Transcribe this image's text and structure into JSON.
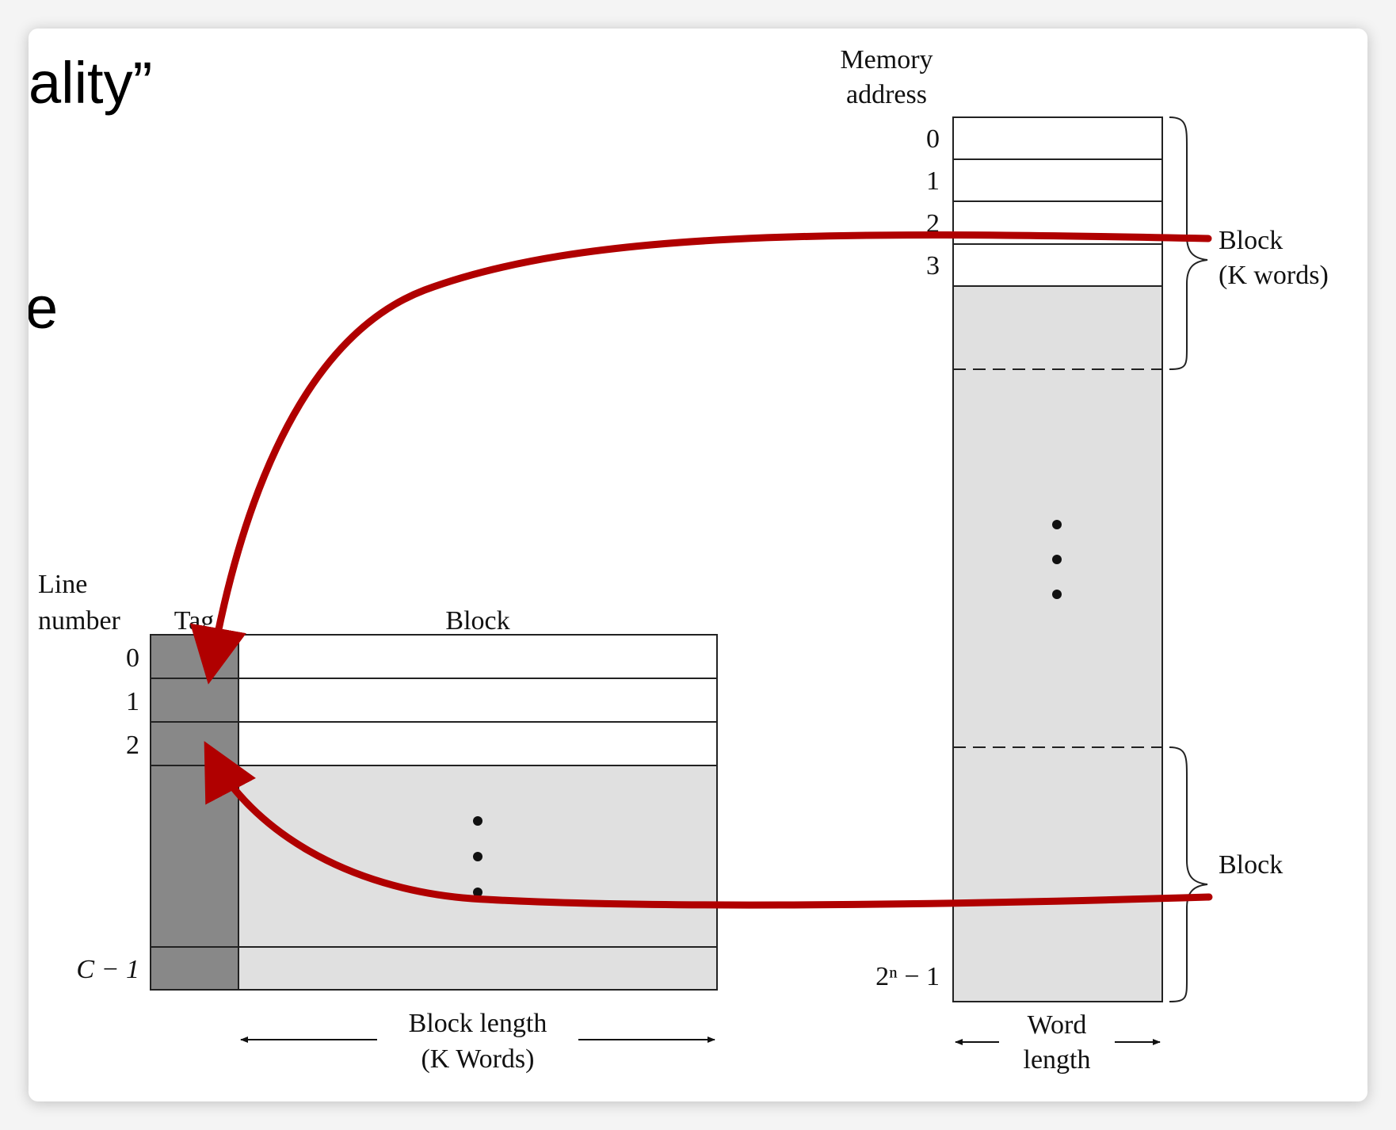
{
  "slide": {
    "title_fragment": "ality”",
    "text_fragment": "e"
  },
  "cache": {
    "line_number_label_1": "Line",
    "line_number_label_2": "number",
    "tag_header": "Tag",
    "block_header": "Block",
    "row_labels": [
      "0",
      "1",
      "2",
      "C − 1"
    ],
    "block_length_1": "Block length",
    "block_length_2": "(K Words)"
  },
  "memory": {
    "header_1": "Memory",
    "header_2": "address",
    "address_labels": [
      "0",
      "1",
      "2",
      "3",
      "2ⁿ − 1"
    ],
    "block_brace_label_1": "Block",
    "block_brace_label_2": "(K words)",
    "block_brace_label_bottom": "Block",
    "word_length_1": "Word",
    "word_length_2": "length"
  },
  "colors": {
    "arrow": "#b00000",
    "tag_fill": "#888888",
    "shade_fill": "#e0e0e0",
    "line": "#222222"
  }
}
